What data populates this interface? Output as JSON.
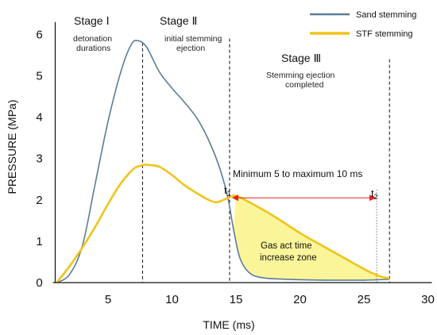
{
  "chart_data": {
    "type": "line",
    "xlabel": "TIME (ms)",
    "ylabel": "PRESSURE (MPa)",
    "xlim": [
      0,
      30
    ],
    "ylim": [
      0,
      6.3
    ],
    "x_ticks": [
      5,
      10,
      15,
      20,
      25,
      30
    ],
    "y_ticks": [
      0,
      1,
      2,
      3,
      4,
      5,
      6
    ],
    "grid": false,
    "legend_position": "top-right",
    "series": [
      {
        "name": "Sand stemming",
        "color": "#5a7d97",
        "points": [
          [
            1.0,
            0.0
          ],
          [
            2.0,
            0.2
          ],
          [
            3.0,
            0.9
          ],
          [
            4.0,
            2.4
          ],
          [
            5.0,
            3.9
          ],
          [
            6.0,
            5.1
          ],
          [
            6.8,
            5.75
          ],
          [
            7.3,
            5.85
          ],
          [
            8.0,
            5.7
          ],
          [
            9.0,
            5.1
          ],
          [
            10.0,
            4.7
          ],
          [
            11.0,
            4.35
          ],
          [
            12.0,
            3.95
          ],
          [
            13.0,
            3.35
          ],
          [
            13.8,
            2.7
          ],
          [
            14.4,
            2.0
          ],
          [
            14.8,
            1.3
          ],
          [
            15.3,
            0.6
          ],
          [
            16.0,
            0.25
          ],
          [
            17.0,
            0.12
          ],
          [
            19.0,
            0.08
          ],
          [
            22.0,
            0.06
          ],
          [
            25.0,
            0.06
          ],
          [
            27.0,
            0.08
          ]
        ]
      },
      {
        "name": "STF stemming",
        "color": "#f2c319",
        "points": [
          [
            1.0,
            0.0
          ],
          [
            2.0,
            0.4
          ],
          [
            3.0,
            0.85
          ],
          [
            4.0,
            1.35
          ],
          [
            5.0,
            1.9
          ],
          [
            6.0,
            2.4
          ],
          [
            7.0,
            2.75
          ],
          [
            7.5,
            2.82
          ],
          [
            8.0,
            2.85
          ],
          [
            9.0,
            2.8
          ],
          [
            10.0,
            2.6
          ],
          [
            11.0,
            2.35
          ],
          [
            12.0,
            2.15
          ],
          [
            13.0,
            1.98
          ],
          [
            13.6,
            1.95
          ],
          [
            14.4,
            2.05
          ],
          [
            15.0,
            2.1
          ],
          [
            16.0,
            1.95
          ],
          [
            18.0,
            1.6
          ],
          [
            20.0,
            1.2
          ],
          [
            22.0,
            0.85
          ],
          [
            24.0,
            0.5
          ],
          [
            25.5,
            0.25
          ],
          [
            26.3,
            0.15
          ],
          [
            27.0,
            0.1
          ]
        ]
      }
    ],
    "stage_lines_x": [
      7.7,
      14.5,
      27.0
    ],
    "t1_x": 14.5,
    "t2_x": 26.0,
    "arrow_y": 2.05,
    "zone_color": "#fbf59a"
  },
  "stages": {
    "stage1": "Stage Ⅰ",
    "stage1_desc": [
      "detonation",
      "durations"
    ],
    "stage2": "Stage Ⅱ",
    "stage2_desc": [
      "initial stemming",
      "ejection"
    ],
    "stage3": "Stage Ⅲ",
    "stage3_desc": [
      "Stemming ejection",
      "completed"
    ]
  },
  "annotations": {
    "range_text": "Minimum 5 to maximum 10 ms",
    "t1": "t",
    "t1_sub": "1",
    "t2": "t",
    "t2_sub": "2",
    "zone_text": [
      "Gas act time",
      "increase zone"
    ]
  }
}
